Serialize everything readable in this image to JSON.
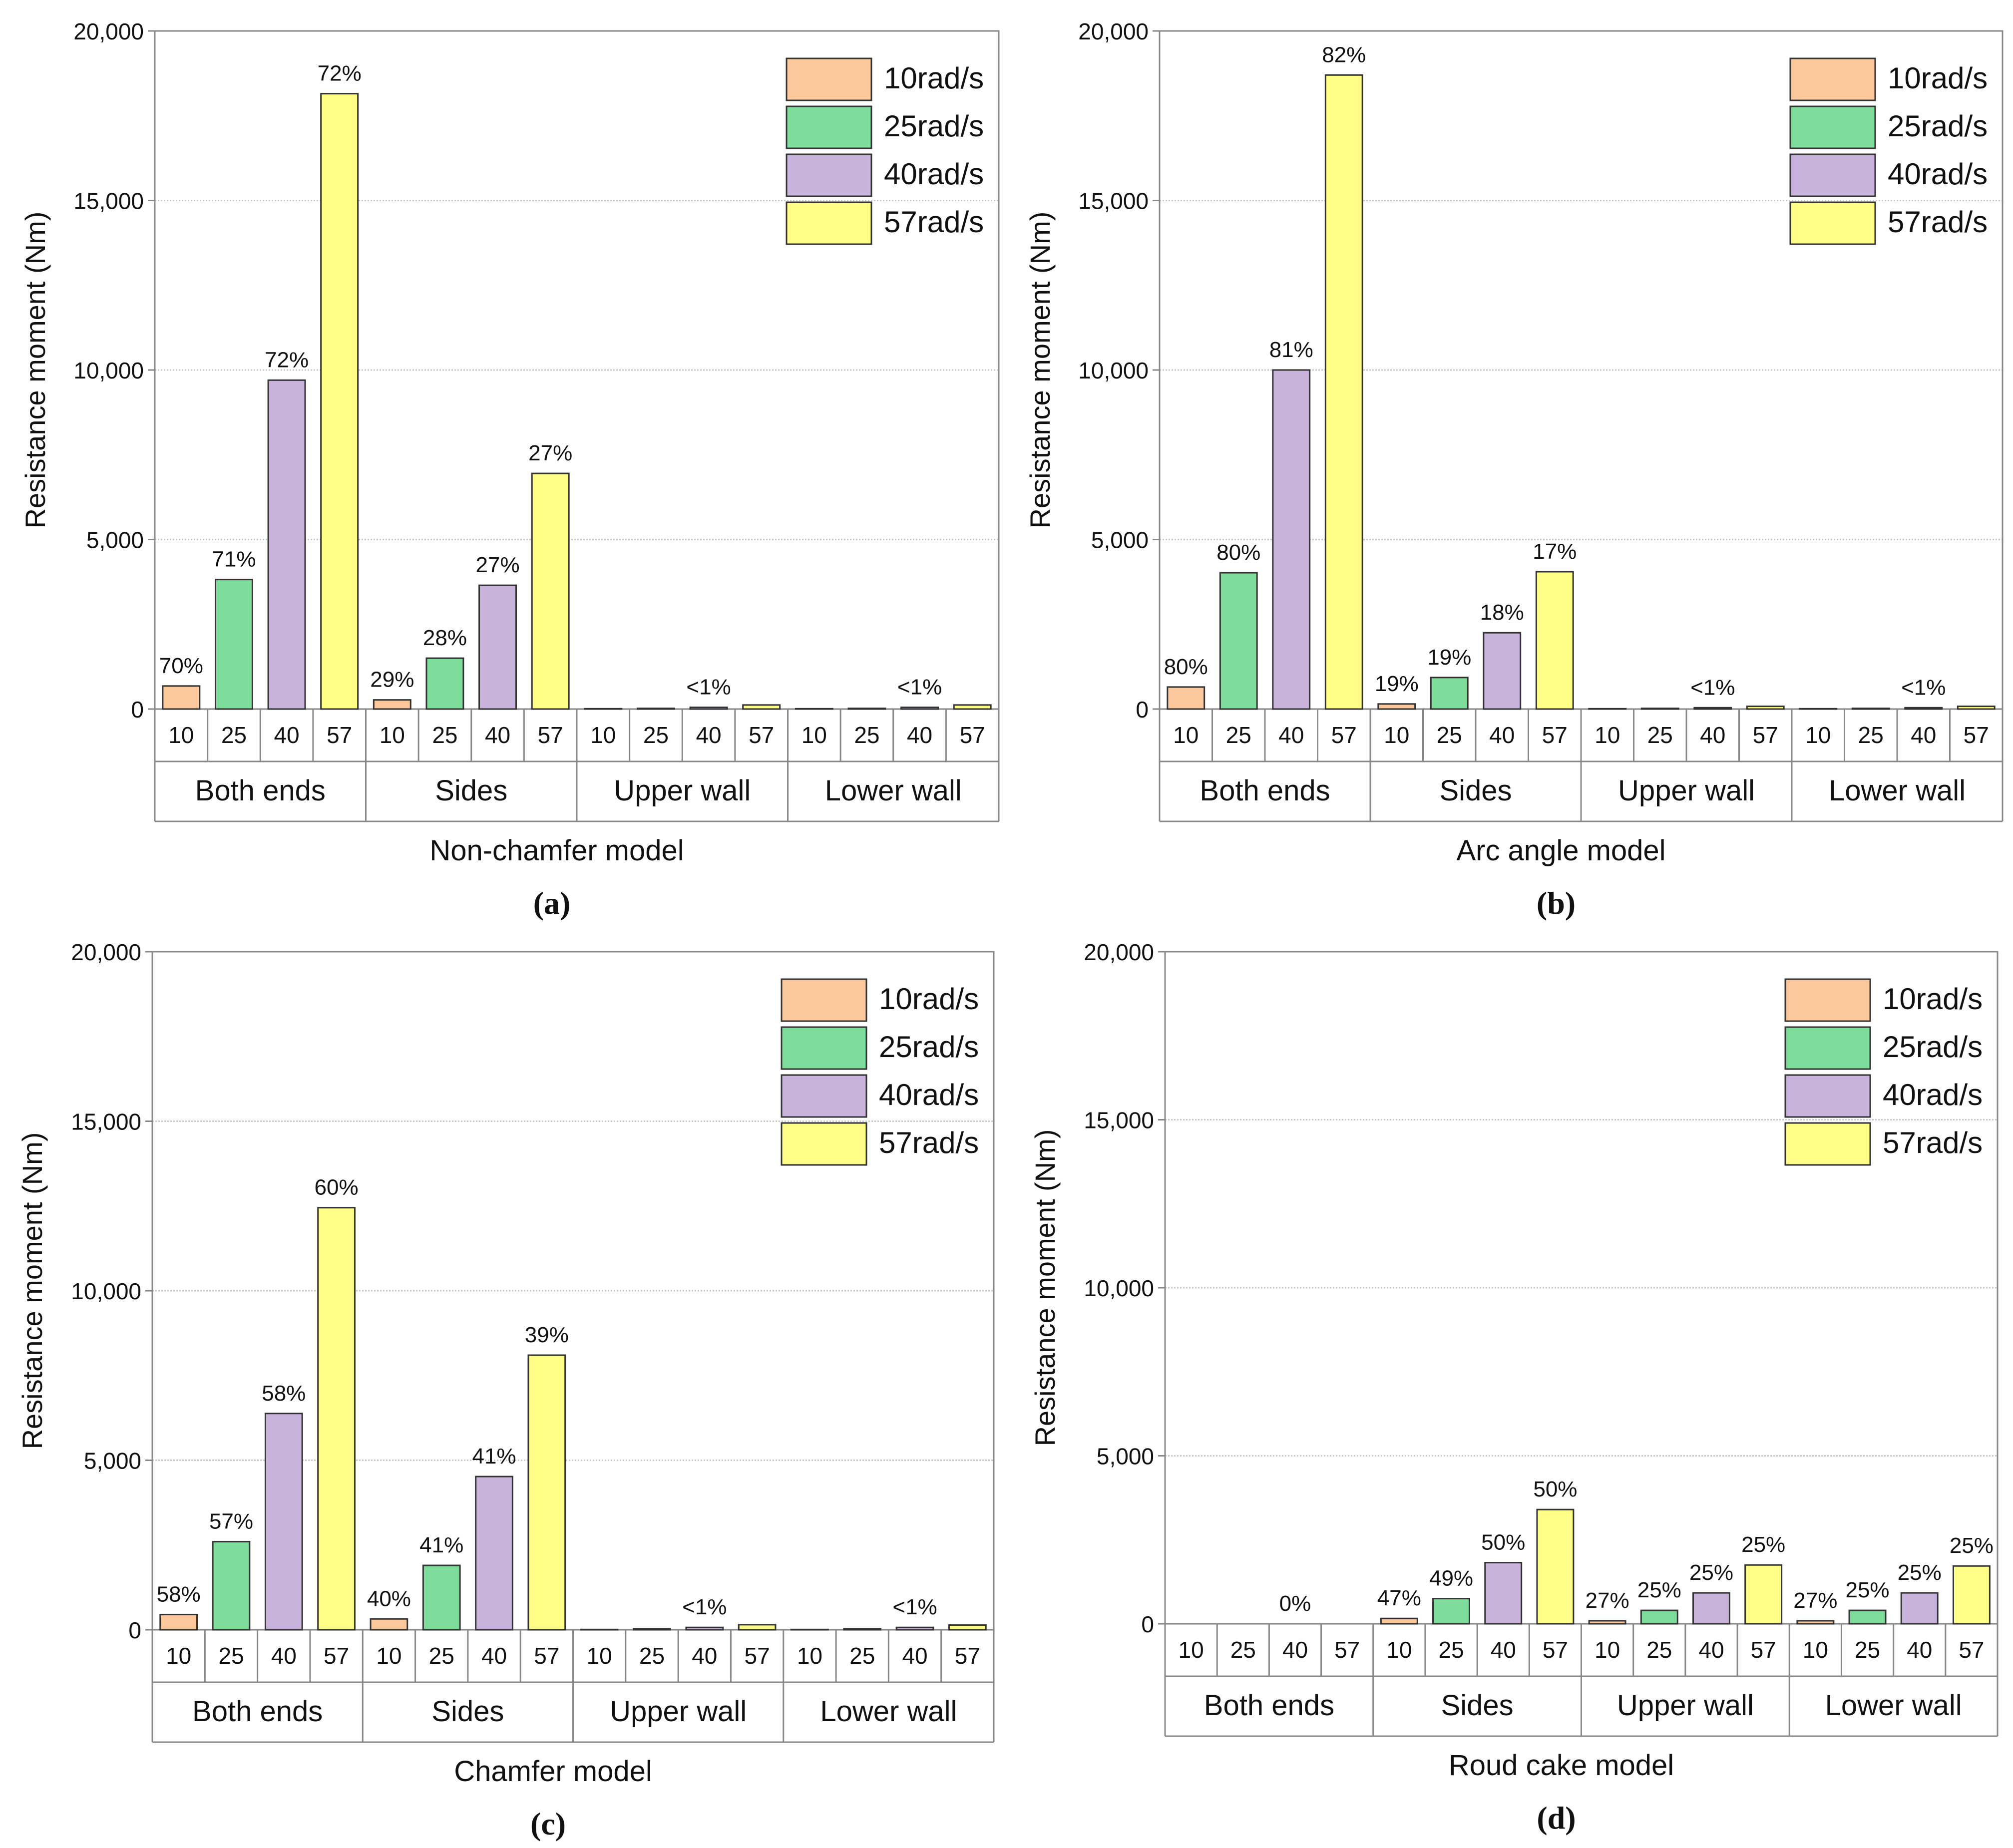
{
  "colors": {
    "s10": "#fcc89b",
    "s25": "#7fdd9b",
    "s40": "#c8b3dd",
    "s57": "#ffff88",
    "grid": "#c8c8c8",
    "axis": "#888888",
    "bar_stroke": "#333333"
  },
  "chart_data": [
    {
      "type": "bar",
      "panel": "(a)",
      "model": "Non-chamfer model",
      "ylabel": "Resistance moment (Nm)",
      "ylim": [
        0,
        20000
      ],
      "yticks": [
        "0",
        "5,000",
        "10,000",
        "15,000",
        "20,000"
      ],
      "grid": true,
      "legend_position": "top-right",
      "groups": [
        "Both ends",
        "Sides",
        "Upper wall",
        "Lower wall"
      ],
      "speeds": [
        "10",
        "25",
        "40",
        "57"
      ],
      "series": [
        {
          "name": "10rad/s",
          "values": [
            680,
            270,
            10,
            10
          ]
        },
        {
          "name": "25rad/s",
          "values": [
            3820,
            1500,
            20,
            20
          ]
        },
        {
          "name": "40rad/s",
          "values": [
            9700,
            3650,
            50,
            50
          ]
        },
        {
          "name": "57rad/s",
          "values": [
            18150,
            6950,
            120,
            120
          ]
        }
      ],
      "annotations": [
        [
          "70%",
          "71%",
          "72%",
          "72%"
        ],
        [
          "29%",
          "28%",
          "27%",
          "27%"
        ],
        [
          "",
          "",
          "<1%",
          ""
        ],
        [
          "",
          "",
          "<1%",
          ""
        ]
      ]
    },
    {
      "type": "bar",
      "panel": "(b)",
      "model": "Arc angle model",
      "ylabel": "Resistance moment (Nm)",
      "ylim": [
        0,
        20000
      ],
      "yticks": [
        "0",
        "5,000",
        "10,000",
        "15,000",
        "20,000"
      ],
      "grid": true,
      "legend_position": "top-right",
      "groups": [
        "Both ends",
        "Sides",
        "Upper wall",
        "Lower wall"
      ],
      "speeds": [
        "10",
        "25",
        "40",
        "57"
      ],
      "series": [
        {
          "name": "10rad/s",
          "values": [
            650,
            150,
            10,
            10
          ]
        },
        {
          "name": "25rad/s",
          "values": [
            4020,
            930,
            20,
            20
          ]
        },
        {
          "name": "40rad/s",
          "values": [
            10000,
            2250,
            40,
            40
          ]
        },
        {
          "name": "57rad/s",
          "values": [
            18700,
            4050,
            80,
            80
          ]
        }
      ],
      "annotations": [
        [
          "80%",
          "80%",
          "81%",
          "82%"
        ],
        [
          "19%",
          "19%",
          "18%",
          "17%"
        ],
        [
          "",
          "",
          "<1%",
          ""
        ],
        [
          "",
          "",
          "<1%",
          ""
        ]
      ]
    },
    {
      "type": "bar",
      "panel": "(c)",
      "model": "Chamfer model",
      "ylabel": "Resistance moment (Nm)",
      "ylim": [
        0,
        20000
      ],
      "yticks": [
        "0",
        "5,000",
        "10,000",
        "15,000",
        "20,000"
      ],
      "grid": true,
      "legend_position": "top-right",
      "groups": [
        "Both ends",
        "Sides",
        "Upper wall",
        "Lower wall"
      ],
      "speeds": [
        "10",
        "25",
        "40",
        "57"
      ],
      "series": [
        {
          "name": "10rad/s",
          "values": [
            450,
            320,
            10,
            10
          ]
        },
        {
          "name": "25rad/s",
          "values": [
            2600,
            1900,
            30,
            30
          ]
        },
        {
          "name": "40rad/s",
          "values": [
            6380,
            4520,
            70,
            70
          ]
        },
        {
          "name": "57rad/s",
          "values": [
            12450,
            8100,
            150,
            140
          ]
        }
      ],
      "annotations": [
        [
          "58%",
          "57%",
          "58%",
          "60%"
        ],
        [
          "40%",
          "41%",
          "41%",
          "39%"
        ],
        [
          "",
          "",
          "<1%",
          ""
        ],
        [
          "",
          "",
          "<1%",
          ""
        ]
      ]
    },
    {
      "type": "bar",
      "panel": "(d)",
      "model": "Roud cake model",
      "ylabel": "Resistance moment (Nm)",
      "ylim": [
        0,
        20000
      ],
      "yticks": [
        "0",
        "5,000",
        "10,000",
        "15,000",
        "20,000"
      ],
      "grid": true,
      "legend_position": "top-right",
      "groups": [
        "Both ends",
        "Sides",
        "Upper wall",
        "Lower wall"
      ],
      "speeds": [
        "10",
        "25",
        "40",
        "57"
      ],
      "series": [
        {
          "name": "10rad/s",
          "values": [
            0,
            160,
            90,
            90
          ]
        },
        {
          "name": "25rad/s",
          "values": [
            0,
            750,
            400,
            400
          ]
        },
        {
          "name": "40rad/s",
          "values": [
            0,
            1820,
            920,
            920
          ]
        },
        {
          "name": "57rad/s",
          "values": [
            0,
            3400,
            1750,
            1720
          ]
        }
      ],
      "annotations": [
        [
          "",
          "",
          "0%",
          ""
        ],
        [
          "47%",
          "49%",
          "50%",
          "50%"
        ],
        [
          "27%",
          "25%",
          "25%",
          "25%"
        ],
        [
          "27%",
          "25%",
          "25%",
          "25%"
        ]
      ]
    }
  ]
}
